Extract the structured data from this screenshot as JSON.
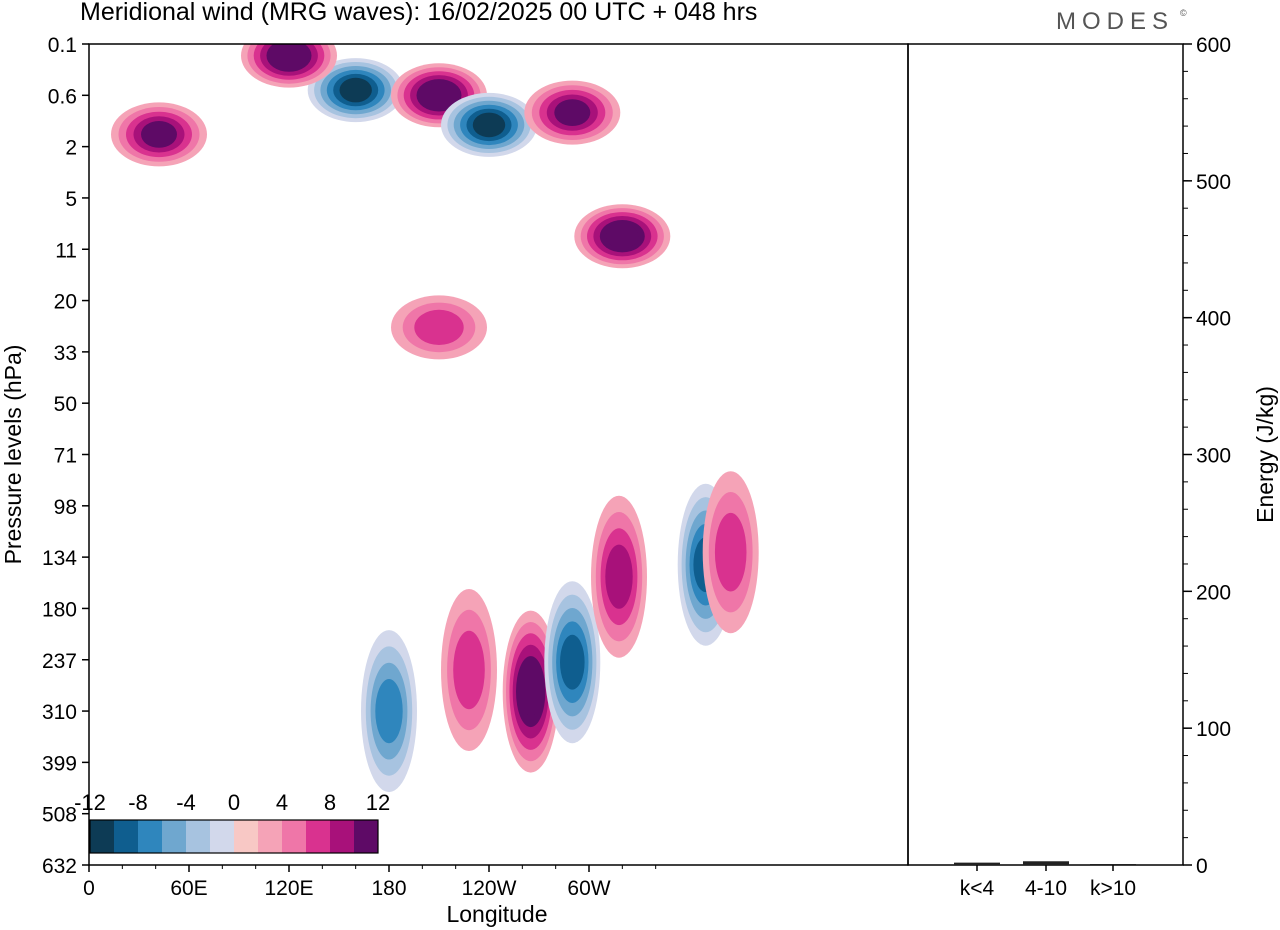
{
  "title": "Meridional wind (MRG waves):  16/02/2025  00 UTC  + 048 hrs",
  "brand": {
    "name": "MODES",
    "mark": "©"
  },
  "colors": {
    "neg": [
      "#0d3b55",
      "#0f5e8f",
      "#2f86bd",
      "#6fa7cf",
      "#a7c3e0",
      "#d2d8eb"
    ],
    "pos": [
      "#f8c8c5",
      "#f5a3b7",
      "#ef76a8",
      "#d9328f",
      "#a8117a",
      "#5e0a66"
    ]
  },
  "chart_data": [
    {
      "type": "heatmap",
      "subtype": "filled-contour",
      "title": "Meridional wind (MRG waves):  16/02/2025  00 UTC  + 048 hrs",
      "xlabel": "Longitude",
      "ylabel": "Pressure levels (hPa)",
      "x_ticks": [
        "0",
        "60E",
        "120E",
        "180",
        "120W",
        "60W"
      ],
      "y_ticks": [
        "0.1",
        "0.6",
        "2",
        "5",
        "11",
        "20",
        "33",
        "50",
        "71",
        "98",
        "134",
        "180",
        "237",
        "310",
        "399",
        "508",
        "632"
      ],
      "colorbar": {
        "levels": [
          -12,
          -10,
          -8,
          -6,
          -4,
          -2,
          0,
          2,
          4,
          6,
          8,
          10,
          12
        ],
        "labels": [
          "-12",
          "-8",
          "-4",
          "0",
          "4",
          "8",
          "12"
        ]
      },
      "features": [
        {
          "lon": 160,
          "level": 0.5,
          "value": -14
        },
        {
          "lon": 120,
          "level": 0.15,
          "value": 12
        },
        {
          "lon": 210,
          "level": 0.6,
          "value": 14
        },
        {
          "lon": 240,
          "level": 1.2,
          "value": -12
        },
        {
          "lon": 290,
          "level": 0.9,
          "value": 11
        },
        {
          "lon": 265,
          "level": 280,
          "value": 14
        },
        {
          "lon": 290,
          "level": 240,
          "value": -11
        },
        {
          "lon": 320,
          "level": 9,
          "value": 12
        },
        {
          "lon": 318,
          "level": 150,
          "value": 9
        },
        {
          "lon": 370,
          "level": 140,
          "value": -11
        },
        {
          "lon": 42,
          "level": 1.5,
          "value": 10
        },
        {
          "lon": 210,
          "level": 26,
          "value": 7
        },
        {
          "lon": 180,
          "level": 310,
          "value": -8
        },
        {
          "lon": 228,
          "level": 250,
          "value": 7
        },
        {
          "lon": 385,
          "level": 130,
          "value": 6
        }
      ]
    },
    {
      "type": "bar",
      "categories": [
        "k<4",
        "4-10",
        "k>10"
      ],
      "values": [
        1,
        2,
        0
      ],
      "ylabel": "Energy (J/kg)",
      "ylim": [
        0,
        600
      ],
      "y_ticks": [
        "0",
        "100",
        "200",
        "300",
        "400",
        "500",
        "600"
      ]
    }
  ]
}
